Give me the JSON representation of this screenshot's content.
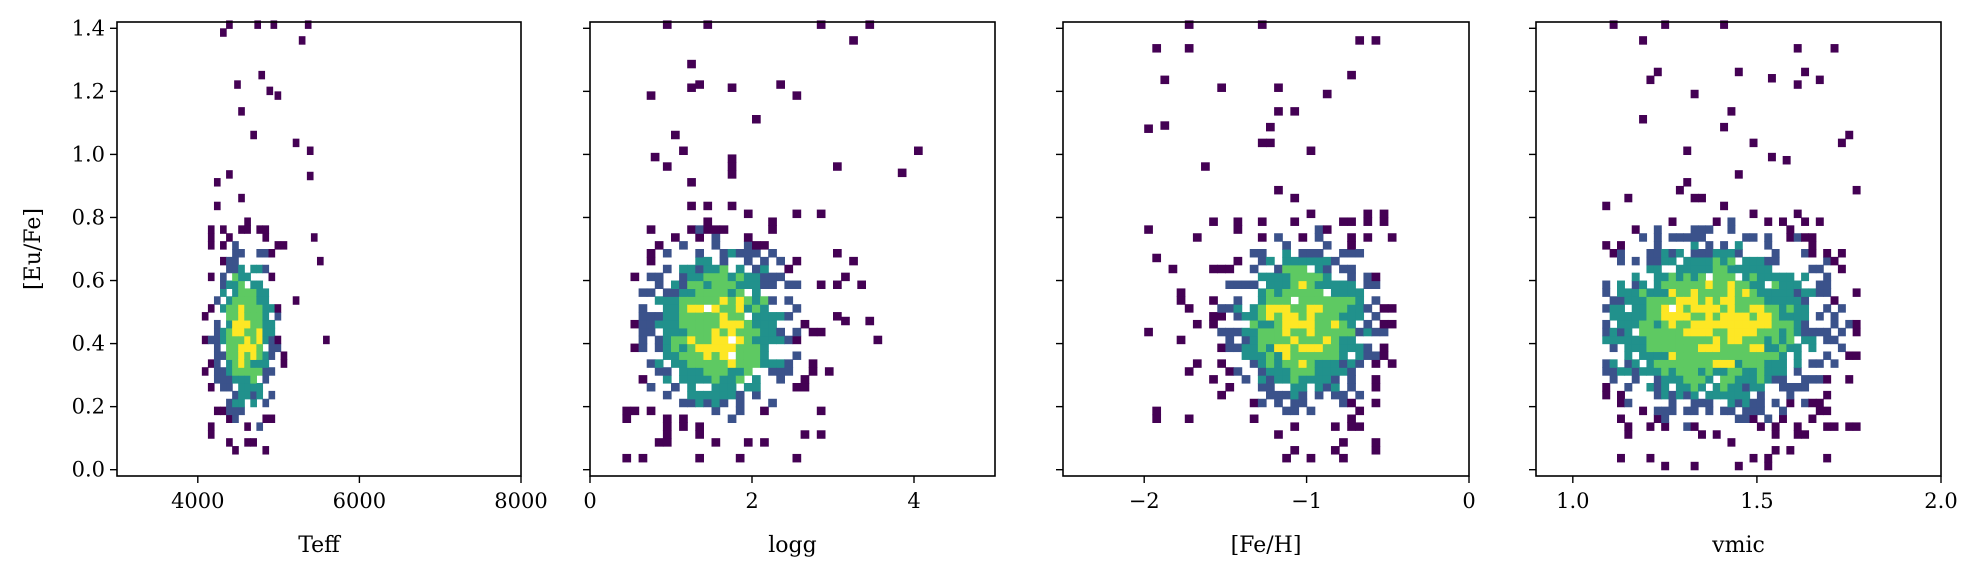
{
  "colors": {
    "background": "#ffffff",
    "axes": "#000000",
    "colormap": [
      "#440154",
      "#3b528b",
      "#21918c",
      "#5ec962",
      "#fde725"
    ]
  },
  "chart_data": [
    {
      "type": "heatmap",
      "xlabel": "Teff",
      "ylabel": "[Eu/Fe]",
      "xlim": [
        3000,
        8000
      ],
      "ylim": [
        -0.02,
        1.42
      ],
      "xticks": [
        4000,
        6000,
        8000
      ],
      "xtick_labels": [
        "4000",
        "6000",
        "8000"
      ],
      "yticks": [
        0.0,
        0.2,
        0.4,
        0.6,
        0.8,
        1.0,
        1.2,
        1.4
      ],
      "ytick_labels": [
        "0.0",
        "0.2",
        "0.4",
        "0.6",
        "0.8",
        "1.0",
        "1.2",
        "1.4"
      ],
      "bin_size": [
        75,
        0.025
      ],
      "cluster": {
        "x_center": 4550,
        "y_center": 0.43,
        "x_spread": 230,
        "y_spread": 0.17,
        "x_range": [
          4050,
          5550
        ],
        "y_range": [
          0.0,
          1.4
        ]
      },
      "outliers": [
        [
          4700,
          1.4
        ],
        [
          4900,
          1.4
        ],
        [
          4750,
          1.24
        ],
        [
          4450,
          1.21
        ],
        [
          4850,
          1.19
        ],
        [
          5350,
          1.0
        ],
        [
          5350,
          0.92
        ]
      ]
    },
    {
      "type": "heatmap",
      "xlabel": "logg",
      "ylabel": "",
      "xlim": [
        0,
        5
      ],
      "ylim": [
        -0.02,
        1.42
      ],
      "xticks": [
        0,
        2,
        4
      ],
      "xtick_labels": [
        "0",
        "2",
        "4"
      ],
      "yticks": [
        0.0,
        0.2,
        0.4,
        0.6,
        0.8,
        1.0,
        1.2,
        1.4
      ],
      "ytick_labels": [],
      "bin_size": [
        0.1,
        0.025
      ],
      "cluster": {
        "x_center": 1.55,
        "y_center": 0.43,
        "x_spread": 0.55,
        "y_spread": 0.17,
        "x_range": [
          0.4,
          3.5
        ],
        "y_range": [
          0.0,
          1.4
        ]
      },
      "outliers": [
        [
          1.4,
          1.4
        ],
        [
          2.8,
          1.4
        ],
        [
          1.3,
          1.21
        ],
        [
          2.3,
          1.21
        ],
        [
          0.75,
          0.98
        ],
        [
          4.0,
          1.0
        ],
        [
          3.8,
          0.93
        ],
        [
          3.4,
          0.46
        ],
        [
          3.1,
          0.46
        ]
      ]
    },
    {
      "type": "heatmap",
      "xlabel": "[Fe/H]",
      "ylabel": "",
      "xlim": [
        -2.5,
        0
      ],
      "ylim": [
        -0.02,
        1.42
      ],
      "xticks": [
        -2,
        -1,
        0
      ],
      "xtick_labels": [
        "−2",
        "−1",
        "0"
      ],
      "yticks": [
        0.0,
        0.2,
        0.4,
        0.6,
        0.8,
        1.0,
        1.2,
        1.4
      ],
      "ytick_labels": [],
      "bin_size": [
        0.05,
        0.025
      ],
      "cluster": {
        "x_center": -1.05,
        "y_center": 0.45,
        "x_spread": 0.28,
        "y_spread": 0.16,
        "x_range": [
          -2.0,
          -0.5
        ],
        "y_range": [
          0.0,
          1.4
        ]
      },
      "outliers": [
        [
          -1.75,
          1.4
        ],
        [
          -1.3,
          1.4
        ],
        [
          -0.75,
          1.24
        ],
        [
          -1.55,
          1.2
        ],
        [
          -1.2,
          1.2
        ],
        [
          -0.9,
          1.18
        ],
        [
          -2.0,
          1.07
        ],
        [
          -1.9,
          1.08
        ],
        [
          -2.0,
          0.75
        ],
        [
          -1.95,
          0.66
        ]
      ]
    },
    {
      "type": "heatmap",
      "xlabel": "vmic",
      "ylabel": "",
      "xlim": [
        0.9,
        2.0
      ],
      "ylim": [
        -0.02,
        1.42
      ],
      "xticks": [
        1.0,
        1.5,
        2.0
      ],
      "xtick_labels": [
        "1.0",
        "1.5",
        "2.0"
      ],
      "yticks": [
        0.0,
        0.2,
        0.4,
        0.6,
        0.8,
        1.0,
        1.2,
        1.4
      ],
      "ytick_labels": [],
      "bin_size": [
        0.02,
        0.025
      ],
      "cluster": {
        "x_center": 1.37,
        "y_center": 0.45,
        "x_spread": 0.2,
        "y_spread": 0.18,
        "x_range": [
          1.08,
          1.76
        ],
        "y_range": [
          0.0,
          1.4
        ]
      },
      "outliers": [
        [
          1.1,
          1.4
        ],
        [
          1.24,
          1.4
        ],
        [
          1.4,
          1.4
        ],
        [
          1.53,
          1.23
        ],
        [
          1.6,
          1.21
        ],
        [
          1.32,
          1.18
        ],
        [
          1.18,
          1.1
        ],
        [
          1.3,
          1.0
        ],
        [
          1.53,
          0.98
        ],
        [
          1.57,
          0.97
        ]
      ]
    }
  ]
}
